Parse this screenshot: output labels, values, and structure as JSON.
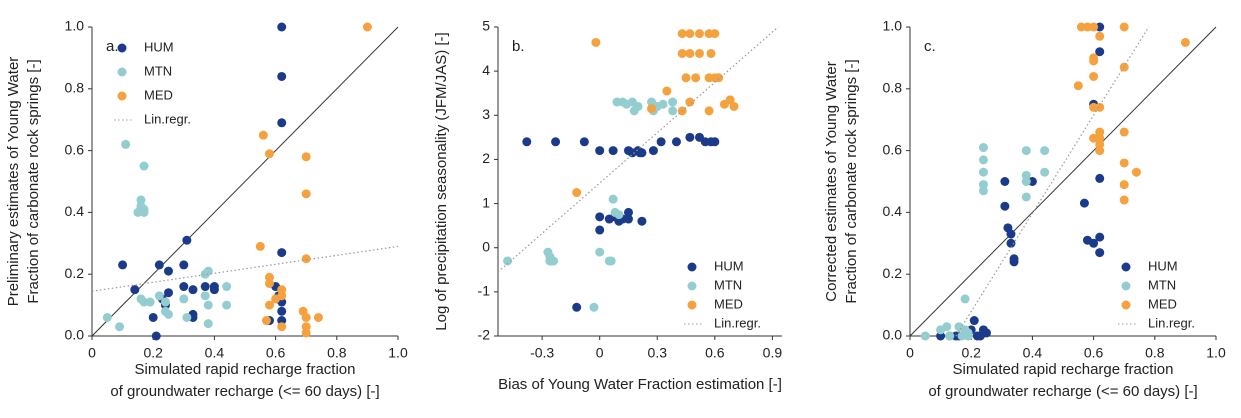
{
  "chart_data": [
    {
      "type": "scatter",
      "panel_label": "a.",
      "xlabel": [
        "Simulated rapid recharge fraction",
        "of groundwater recharge (<= 60 days) [-]"
      ],
      "ylabel": [
        "Preliminary estimates of Young Water",
        "Fraction of carbonate rock springs [-]"
      ],
      "xlim": [
        0,
        1
      ],
      "ylim": [
        0,
        1
      ],
      "xticks": [
        0,
        0.2,
        0.4,
        0.6,
        0.8,
        {
          "value": 1,
          "label": "1.0"
        }
      ],
      "yticks": [
        {
          "value": 0,
          "label": "0.0"
        },
        0.2,
        0.4,
        0.6,
        0.8,
        {
          "value": 1,
          "label": "1.0"
        }
      ],
      "diagonal": true,
      "legend": "upper left",
      "series": [
        {
          "name": "HUM",
          "color": "#1b3a8a",
          "x": [
            0.1,
            0.14,
            0.2,
            0.21,
            0.22,
            0.23,
            0.24,
            0.25,
            0.25,
            0.3,
            0.3,
            0.31,
            0.33,
            0.33,
            0.33,
            0.37,
            0.4,
            0.4,
            0.62,
            0.62,
            0.62,
            0.62,
            0.62,
            0.62,
            0.6,
            0.61,
            0.62,
            0.58
          ],
          "values": [
            0.23,
            0.15,
            0.06,
            0.0,
            0.23,
            0.12,
            0.1,
            0.21,
            0.14,
            0.16,
            0.23,
            0.31,
            0.07,
            0.06,
            0.15,
            0.16,
            0.16,
            0.15,
            1.0,
            0.84,
            0.69,
            0.27,
            0.08,
            0.05,
            0.16,
            0.13,
            0.11,
            0.05
          ]
        },
        {
          "name": "MTN",
          "color": "#94cdd0",
          "x": [
            0.05,
            0.09,
            0.11,
            0.17,
            0.16,
            0.16,
            0.17,
            0.15,
            0.17,
            0.16,
            0.17,
            0.19,
            0.22,
            0.24,
            0.25,
            0.24,
            0.37,
            0.38,
            0.38,
            0.37,
            0.38,
            0.44,
            0.44,
            0.3,
            0.31
          ],
          "values": [
            0.06,
            0.03,
            0.62,
            0.55,
            0.44,
            0.42,
            0.41,
            0.4,
            0.4,
            0.12,
            0.11,
            0.11,
            0.13,
            0.08,
            0.07,
            0.11,
            0.13,
            0.1,
            0.04,
            0.2,
            0.21,
            0.16,
            0.1,
            0.12,
            0.06
          ]
        },
        {
          "name": "MED",
          "color": "#f5a23e",
          "x": [
            0.9,
            0.55,
            0.56,
            0.58,
            0.7,
            0.7,
            0.58,
            0.58,
            0.58,
            0.57,
            0.62,
            0.62,
            0.62,
            0.7,
            0.69,
            0.7,
            0.7,
            0.74,
            0.7,
            0.6
          ],
          "values": [
            1.0,
            0.29,
            0.65,
            0.59,
            0.58,
            0.46,
            0.17,
            0.19,
            0.1,
            0.05,
            0.15,
            0.13,
            0.03,
            0.25,
            0.08,
            0.06,
            0.03,
            0.06,
            0.01,
            0.12
          ]
        },
        {
          "name": "Lin.regr.",
          "color": "#999999",
          "style": "dotted",
          "x": [
            0,
            1
          ],
          "values": [
            0.145,
            0.29
          ]
        }
      ]
    },
    {
      "type": "scatter",
      "panel_label": "b.",
      "xlabel": [
        "Bias of Young Water Fraction estimation [-]"
      ],
      "ylabel": [
        "Log of precipitation seasonality (JFM/JAS) [-]"
      ],
      "xlim": [
        -0.53,
        0.95
      ],
      "ylim": [
        -2,
        5
      ],
      "xticks": [
        -0.3,
        0,
        0.3,
        0.6,
        0.9
      ],
      "yticks": [
        -2,
        -1,
        0,
        1,
        2,
        3,
        4,
        5
      ],
      "diagonal": false,
      "legend": "lower right",
      "series": [
        {
          "name": "HUM",
          "color": "#1b3a8a",
          "x": [
            -0.38,
            -0.23,
            -0.08,
            0.0,
            0.07,
            0.15,
            0.17,
            0.2,
            0.22,
            0.28,
            0.32,
            0.4,
            0.47,
            0.52,
            0.55,
            0.58,
            0.6,
            0.21,
            0.0,
            0.0,
            0.05,
            0.08,
            0.1,
            0.12,
            0.15,
            0.15,
            0.22,
            -0.12
          ],
          "values": [
            2.4,
            2.4,
            2.4,
            2.2,
            2.2,
            2.2,
            2.15,
            2.2,
            2.15,
            2.2,
            2.4,
            2.4,
            2.5,
            2.5,
            2.4,
            2.4,
            2.4,
            2.15,
            0.7,
            0.4,
            0.65,
            0.7,
            0.6,
            0.65,
            0.8,
            0.65,
            0.6,
            -1.35
          ]
        },
        {
          "name": "MTN",
          "color": "#94cdd0",
          "x": [
            -0.48,
            -0.27,
            -0.26,
            -0.25,
            -0.24,
            -0.26,
            -0.03,
            0.0,
            0.05,
            0.06,
            0.07,
            0.08,
            0.1,
            0.09,
            0.12,
            0.14,
            0.17,
            0.18,
            0.2,
            0.27,
            0.28,
            0.3,
            0.33,
            0.38,
            0.38
          ],
          "values": [
            -0.3,
            -0.1,
            -0.3,
            -0.3,
            -0.3,
            -0.2,
            -1.35,
            -0.1,
            -0.3,
            -0.3,
            1.1,
            0.8,
            0.75,
            3.3,
            3.3,
            3.25,
            3.3,
            3.1,
            3.2,
            3.3,
            3.1,
            3.2,
            3.25,
            3.3,
            3.1
          ]
        },
        {
          "name": "MED",
          "color": "#f5a23e",
          "x": [
            -0.12,
            -0.02,
            0.27,
            0.35,
            0.43,
            0.47,
            0.52,
            0.57,
            0.43,
            0.47,
            0.52,
            0.45,
            0.5,
            0.57,
            0.6,
            0.62,
            0.58,
            0.47,
            0.57,
            0.65,
            0.68,
            0.7,
            0.43,
            0.6
          ],
          "values": [
            1.25,
            4.65,
            3.15,
            3.55,
            4.85,
            4.85,
            4.85,
            4.85,
            4.4,
            4.4,
            4.4,
            3.85,
            3.85,
            3.85,
            3.85,
            3.85,
            4.4,
            3.3,
            3.1,
            3.25,
            3.35,
            3.2,
            3.1,
            4.85
          ]
        },
        {
          "name": "Lin.regr.",
          "color": "#999999",
          "style": "dotted",
          "x": [
            -0.53,
            0.93
          ],
          "values": [
            -0.55,
            5
          ]
        }
      ]
    },
    {
      "type": "scatter",
      "panel_label": "c.",
      "xlabel": [
        "Simulated rapid recharge fraction",
        "of groundwater recharge (<= 60 days) [-]"
      ],
      "ylabel": [
        "Corrected estimates of Young Water",
        "Fraction of carbonate rock springs [-]"
      ],
      "xlim": [
        0,
        1
      ],
      "ylim": [
        0,
        1
      ],
      "xticks": [
        0,
        0.2,
        0.4,
        0.6,
        0.8,
        {
          "value": 1,
          "label": "1.0"
        }
      ],
      "yticks": [
        {
          "value": 0,
          "label": "0.0"
        },
        0.2,
        0.4,
        0.6,
        0.8,
        {
          "value": 1,
          "label": "1.0"
        }
      ],
      "diagonal": true,
      "legend": "lower right",
      "series": [
        {
          "name": "HUM",
          "color": "#1b3a8a",
          "x": [
            0.1,
            0.13,
            0.15,
            0.16,
            0.2,
            0.22,
            0.24,
            0.23,
            0.25,
            0.24,
            0.21,
            0.31,
            0.31,
            0.32,
            0.33,
            0.33,
            0.34,
            0.34,
            0.4,
            0.57,
            0.58,
            0.6,
            0.62,
            0.62,
            0.62,
            0.62,
            0.62,
            0.6
          ],
          "values": [
            0.0,
            0.0,
            0.0,
            0.0,
            0.02,
            0.0,
            0.01,
            0.0,
            0.01,
            0.02,
            0.05,
            0.5,
            0.42,
            0.35,
            0.33,
            0.3,
            0.25,
            0.24,
            0.5,
            0.43,
            0.31,
            0.3,
            0.32,
            0.27,
            0.51,
            1.0,
            0.92,
            0.75
          ]
        },
        {
          "name": "MTN",
          "color": "#94cdd0",
          "x": [
            0.05,
            0.1,
            0.12,
            0.13,
            0.16,
            0.18,
            0.17,
            0.18,
            0.19,
            0.19,
            0.24,
            0.24,
            0.24,
            0.24,
            0.24,
            0.38,
            0.38,
            0.38,
            0.38,
            0.44,
            0.44
          ],
          "values": [
            0.0,
            0.02,
            0.03,
            0.0,
            0.03,
            0.12,
            0.0,
            0.02,
            0.01,
            0.0,
            0.61,
            0.57,
            0.53,
            0.49,
            0.47,
            0.6,
            0.52,
            0.5,
            0.45,
            0.6,
            0.53
          ]
        },
        {
          "name": "MED",
          "color": "#f5a23e",
          "x": [
            0.55,
            0.56,
            0.58,
            0.6,
            0.6,
            0.6,
            0.6,
            0.62,
            0.6,
            0.62,
            0.62,
            0.62,
            0.62,
            0.62,
            0.7,
            0.7,
            0.7,
            0.7,
            0.7,
            0.7,
            0.74,
            0.9,
            0.6
          ],
          "values": [
            0.81,
            1.0,
            1.0,
            1.0,
            0.9,
            0.89,
            0.84,
            0.97,
            0.74,
            0.74,
            0.66,
            0.64,
            0.62,
            0.6,
            1.0,
            0.87,
            0.66,
            0.56,
            0.49,
            0.44,
            0.53,
            0.95,
            0.64
          ]
        },
        {
          "name": "Lin.regr.",
          "color": "#999999",
          "style": "dotted",
          "x": [
            0.15,
            0.78
          ],
          "values": [
            0,
            1
          ]
        }
      ]
    }
  ]
}
